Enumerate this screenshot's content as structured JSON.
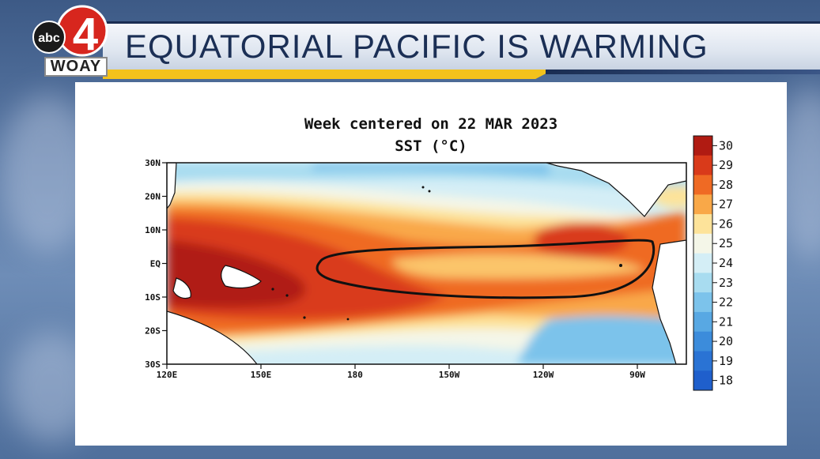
{
  "station": {
    "network": "abc",
    "channel": "4",
    "callsign": "WOAY"
  },
  "headline": "EQUATORIAL PACIFIC IS WARMING",
  "map": {
    "title_line1": "Week centered on 22 MAR 2023",
    "title_line2": "SST (°C)",
    "lat_labels": [
      "30N",
      "20N",
      "10N",
      "EQ",
      "10S",
      "20S",
      "30S"
    ],
    "lon_labels": [
      "120E",
      "150E",
      "180",
      "150W",
      "120W",
      "90W"
    ],
    "colorbar": {
      "labels": [
        "30",
        "29",
        "28",
        "27",
        "26",
        "25",
        "24",
        "23",
        "22",
        "21",
        "20",
        "19",
        "18"
      ],
      "colors": [
        "#b01b12",
        "#d93a1a",
        "#ef6a24",
        "#f9a848",
        "#fde39a",
        "#f4f6e8",
        "#d4eef6",
        "#a8dcf0",
        "#7cc3eb",
        "#58a8e3",
        "#3c8cdb",
        "#2a73d4",
        "#1f5fcc"
      ]
    },
    "highlight": "warm tongue outline"
  }
}
